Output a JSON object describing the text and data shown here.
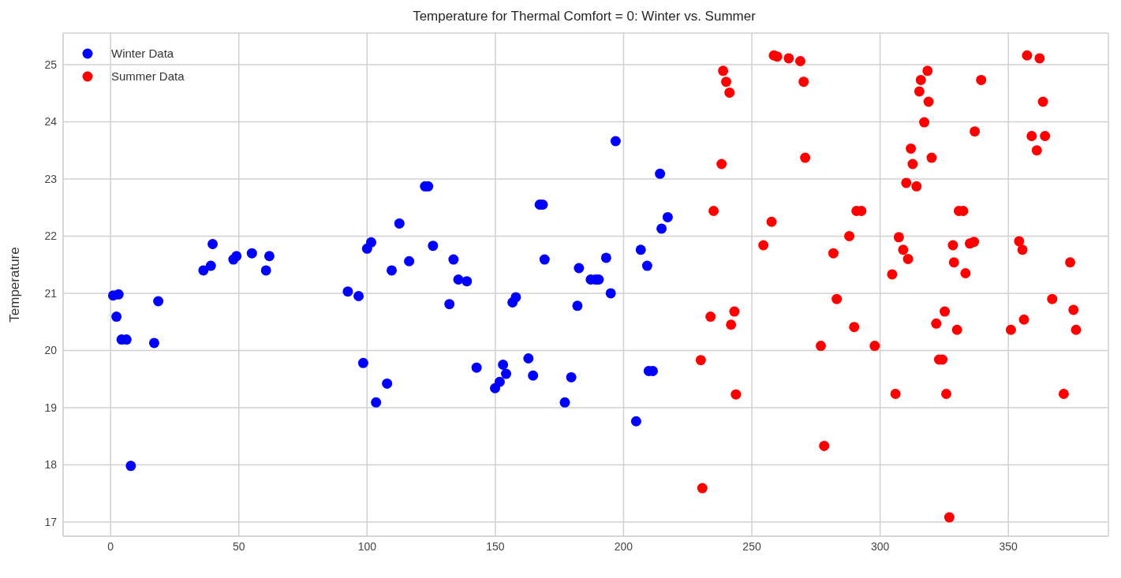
{
  "chart_data": {
    "type": "scatter",
    "title": "Temperature for Thermal Comfort = 0: Winter vs. Summer",
    "ylabel": "Temperature",
    "xlim": [
      -18.5,
      389
    ],
    "xticks": [
      0,
      50,
      100,
      150,
      200,
      250,
      300,
      350
    ],
    "ylim": [
      16.75,
      25.55
    ],
    "yticks": [
      17,
      18,
      19,
      20,
      21,
      22,
      23,
      24,
      25
    ],
    "grid": true,
    "legend": "top left",
    "marker": "circle",
    "series": [
      {
        "name": "Winter Data",
        "color": "#0000ff",
        "x": [
          1,
          3.1,
          2.3,
          4.3,
          6.2,
          18.6,
          17,
          7.9,
          36.2,
          39.1,
          39.8,
          47.9,
          49.1,
          55.1,
          60.6,
          61.9,
          92.5,
          96.7,
          98.5,
          100,
          101.6,
          107.8,
          103.5,
          109.6,
          112.6,
          116.4,
          122.6,
          123.8,
          125.7,
          133.7,
          135.6,
          138.9,
          132.1,
          142.7,
          153,
          154.2,
          151.7,
          149.9,
          162.9,
          164.7,
          156.7,
          158,
          167.3,
          168.5,
          169.2,
          179.6,
          177.1,
          182,
          182.6,
          187.2,
          189.1,
          190.3,
          193.2,
          195,
          196.9,
          204.9,
          206.7,
          209.2,
          209.8,
          211.4,
          214.2,
          214.8,
          217.2
        ],
        "values": [
          20.96,
          20.98,
          20.59,
          20.19,
          20.19,
          20.86,
          20.13,
          17.98,
          21.4,
          21.48,
          21.86,
          21.59,
          21.65,
          21.7,
          21.4,
          21.65,
          21.03,
          20.95,
          19.78,
          21.78,
          21.89,
          19.42,
          19.09,
          21.4,
          22.22,
          21.56,
          22.87,
          22.87,
          21.83,
          21.59,
          21.24,
          21.21,
          20.81,
          19.7,
          19.75,
          19.59,
          19.45,
          19.34,
          19.86,
          19.56,
          20.84,
          20.93,
          22.55,
          22.55,
          21.59,
          19.53,
          19.09,
          20.78,
          21.44,
          21.24,
          21.24,
          21.24,
          21.62,
          21.0,
          23.66,
          18.76,
          21.76,
          21.48,
          19.64,
          19.64,
          23.09,
          22.13,
          22.33
        ]
      },
      {
        "name": "Summer Data",
        "color": "#ff0000",
        "x": [
          238.8,
          240,
          241.3,
          238.2,
          235.1,
          233.9,
          243.2,
          241.9,
          230.1,
          243.8,
          230.7,
          258.6,
          259.9,
          264.4,
          268.9,
          270.2,
          270.8,
          257.7,
          254.5,
          281.8,
          288,
          290.8,
          292.7,
          283.1,
          289.9,
          276.9,
          297.9,
          278.2,
          318.5,
          315.9,
          315.3,
          318.9,
          317.2,
          339.4,
          336.9,
          312,
          312.7,
          320.1,
          310.2,
          314.2,
          330.7,
          332.4,
          307.3,
          309,
          310.9,
          304.7,
          328.4,
          328.8,
          333.3,
          335,
          336.6,
          325.2,
          321.9,
          330,
          323,
          324.3,
          306,
          325.8,
          327,
          357.3,
          362.2,
          363.5,
          359.1,
          364.3,
          361.1,
          354.2,
          355.5,
          374.1,
          367.1,
          375.4,
          356.1,
          351,
          376.4,
          371.6
        ],
        "values": [
          24.89,
          24.7,
          24.51,
          23.26,
          22.44,
          20.59,
          20.68,
          20.45,
          19.83,
          19.23,
          17.59,
          25.16,
          25.14,
          25.11,
          25.06,
          24.7,
          23.37,
          22.25,
          21.84,
          21.7,
          22.0,
          22.44,
          22.44,
          20.9,
          20.41,
          20.08,
          20.08,
          18.33,
          24.89,
          24.73,
          24.53,
          24.35,
          23.99,
          24.73,
          23.83,
          23.53,
          23.26,
          23.37,
          22.93,
          22.87,
          22.44,
          22.44,
          21.98,
          21.76,
          21.6,
          21.33,
          21.84,
          21.54,
          21.35,
          21.87,
          21.9,
          20.68,
          20.47,
          20.36,
          19.84,
          19.84,
          19.24,
          19.24,
          17.08,
          25.16,
          25.11,
          24.35,
          23.75,
          23.75,
          23.5,
          21.91,
          21.76,
          21.54,
          20.9,
          20.71,
          20.54,
          20.36,
          20.36,
          19.24
        ]
      }
    ]
  }
}
